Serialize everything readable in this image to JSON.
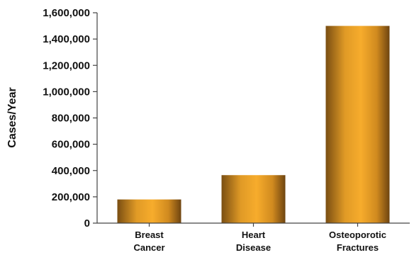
{
  "chart_data": {
    "type": "bar",
    "categories": [
      [
        "Breast",
        "Cancer"
      ],
      [
        "Heart",
        "Disease"
      ],
      [
        "Osteoporotic",
        "Fractures"
      ]
    ],
    "values": [
      180000,
      365000,
      1500000
    ],
    "title": "",
    "xlabel": "",
    "ylabel": "Cases/Year",
    "ylim": [
      0,
      1600000
    ],
    "yticks": [
      0,
      200000,
      400000,
      600000,
      800000,
      1000000,
      1200000,
      1400000,
      1600000
    ],
    "grid": false,
    "bar_color_center": "#F5A623",
    "bar_color_edge": "#7A4E12"
  }
}
